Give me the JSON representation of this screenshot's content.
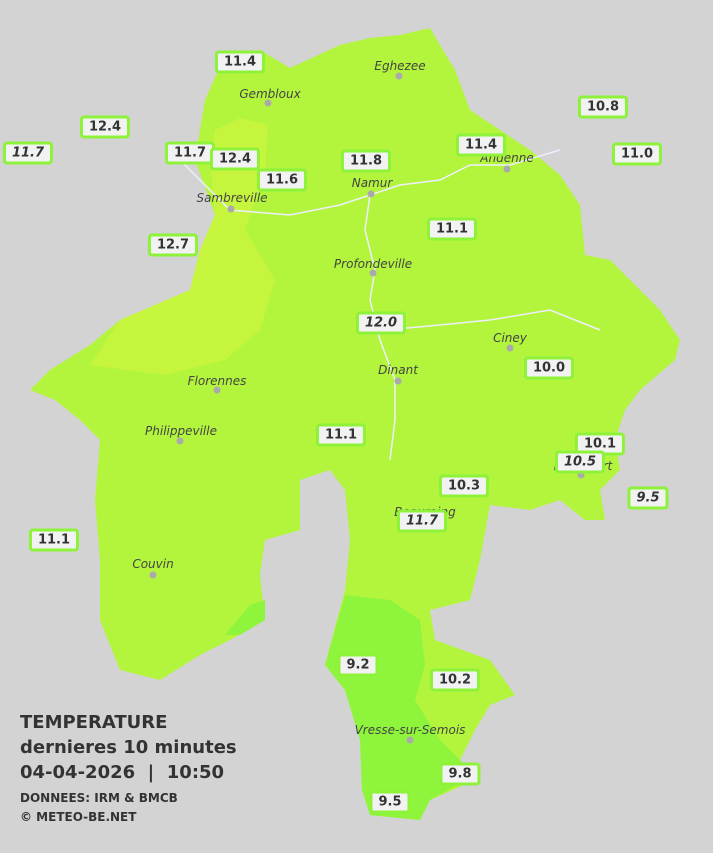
{
  "legend": {
    "title": "TEMPERATURE",
    "subtitle": "dernieres 10 minutes",
    "datetime": "04-04-2026  |  10:50",
    "source": "DONNEES: IRM & BMCB",
    "copyright": "© METEO-BE.NET"
  },
  "cities": [
    "Eghezee",
    "Gembloux",
    "Andenne",
    "Namur",
    "Sambreville",
    "Profondeville",
    "Ciney",
    "Dinant",
    "Florennes",
    "Philippeville",
    "Rochefort",
    "Beauraing",
    "Couvin",
    "Vresse-sur-Semois"
  ],
  "stations": [
    {
      "value": "11.4",
      "italic": false
    },
    {
      "value": "12.4",
      "italic": false
    },
    {
      "value": "11.7",
      "italic": true
    },
    {
      "value": "11.7",
      "italic": false
    },
    {
      "value": "12.4",
      "italic": false
    },
    {
      "value": "11.6",
      "italic": false
    },
    {
      "value": "11.8",
      "italic": false
    },
    {
      "value": "11.4",
      "italic": false
    },
    {
      "value": "10.8",
      "italic": false
    },
    {
      "value": "11.0",
      "italic": false
    },
    {
      "value": "12.7",
      "italic": false
    },
    {
      "value": "11.1",
      "italic": false
    },
    {
      "value": "12.0",
      "italic": true
    },
    {
      "value": "10.0",
      "italic": false
    },
    {
      "value": "11.1",
      "italic": false
    },
    {
      "value": "10.1",
      "italic": false
    },
    {
      "value": "10.5",
      "italic": true
    },
    {
      "value": "10.3",
      "italic": false
    },
    {
      "value": "9.5",
      "italic": true
    },
    {
      "value": "11.7",
      "italic": true
    },
    {
      "value": "11.1",
      "italic": false
    },
    {
      "value": "9.2",
      "italic": false
    },
    {
      "value": "10.2",
      "italic": false
    },
    {
      "value": "9.8",
      "italic": false
    },
    {
      "value": "9.5",
      "italic": false
    }
  ]
}
